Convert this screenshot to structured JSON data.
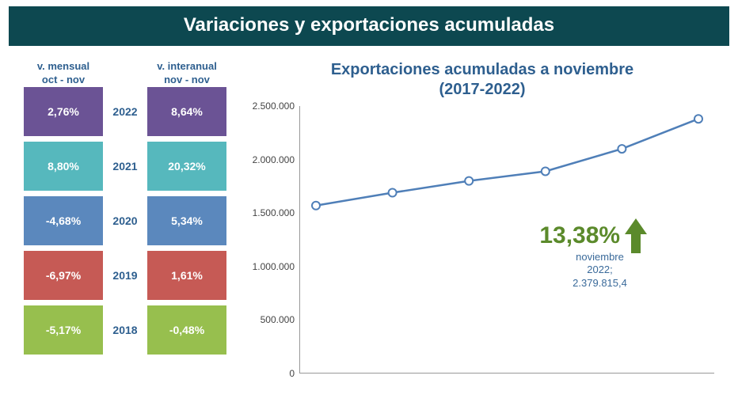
{
  "header": {
    "title": "Variaciones y exportaciones acumuladas"
  },
  "columns": {
    "mensual": {
      "title": "v. mensual",
      "subtitle": "oct - nov"
    },
    "interanual": {
      "title": "v. interanual",
      "subtitle": "nov - nov"
    }
  },
  "rows": [
    {
      "year": "2022",
      "mensual": "2,76%",
      "interanual": "8,64%",
      "color": "#6b5395"
    },
    {
      "year": "2021",
      "mensual": "8,80%",
      "interanual": "20,32%",
      "color": "#56b8bd"
    },
    {
      "year": "2020",
      "mensual": "-4,68%",
      "interanual": "5,34%",
      "color": "#5b88bd"
    },
    {
      "year": "2019",
      "mensual": "-6,97%",
      "interanual": "1,61%",
      "color": "#c65a55"
    },
    {
      "year": "2018",
      "mensual": "-5,17%",
      "interanual": "-0,48%",
      "color": "#97bf4e"
    }
  ],
  "chart": {
    "title_line1": "Exportaciones acumuladas a noviembre",
    "title_line2": "(2017-2022)",
    "ymin": 0,
    "ymax": 2500000,
    "ytick_step": 500000,
    "ytick_labels": [
      "0",
      "500.000",
      "1.000.000",
      "1.500.000",
      "2.000.000",
      "2.500.000"
    ],
    "line_color": "#4f7fb8",
    "marker_fill": "#ffffff",
    "marker_stroke": "#4f7fb8",
    "line_width": 2.5,
    "marker_radius": 5,
    "points_x": [
      2017,
      2018,
      2019,
      2020,
      2021,
      2022
    ],
    "points_y": [
      1570000,
      1690000,
      1800000,
      1890000,
      2100000,
      2380000
    ],
    "callout_pct": "13,38%",
    "callout_color": "#5b8a2b",
    "note_line1": "noviembre",
    "note_line2": "2022;",
    "note_line3": "2.379.815,4",
    "note_color": "#3a6a9a",
    "background": "#ffffff"
  }
}
